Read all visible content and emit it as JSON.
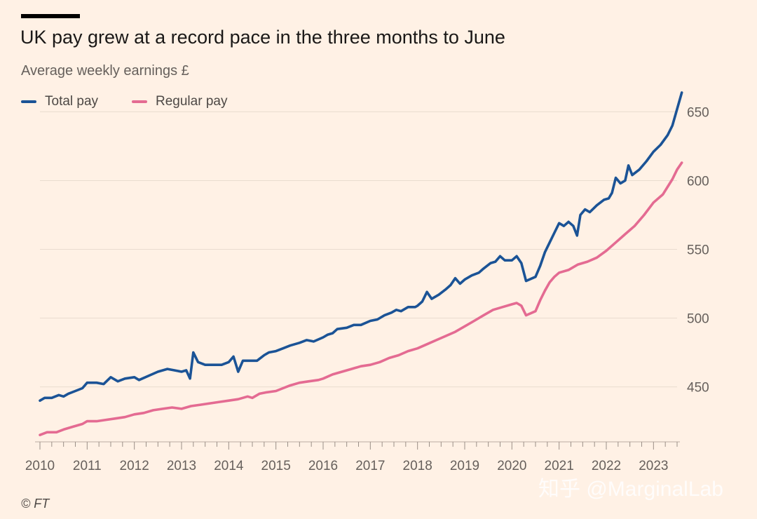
{
  "header": {
    "title": "UK pay grew at a record pace in the three months to June",
    "subtitle": "Average weekly earnings £"
  },
  "footer": {
    "source": "© FT"
  },
  "watermark": "知乎 @MarginalLab",
  "colors": {
    "background": "#fff1e5",
    "total": "#1b5396",
    "regular": "#e46b92",
    "grid": "#e9dccf",
    "axis": "#66605c"
  },
  "chart_data": {
    "type": "line",
    "title": "UK pay grew at a record pace in the three months to June",
    "subtitle": "Average weekly earnings £",
    "xlabel": "",
    "ylabel": "",
    "xlim": [
      2010,
      2023.5
    ],
    "ylim": [
      410,
      665
    ],
    "grid": true,
    "yaxis_position": "right",
    "legend_position": "top-left",
    "x_ticks": [
      2010,
      2011,
      2012,
      2013,
      2014,
      2015,
      2016,
      2017,
      2018,
      2019,
      2020,
      2021,
      2022,
      2023
    ],
    "x_tick_labels": [
      "2010",
      "2011",
      "2012",
      "2013",
      "2014",
      "2015",
      "2016",
      "2017",
      "2018",
      "2019",
      "2020",
      "2021",
      "2022",
      "2023"
    ],
    "y_ticks": [
      450,
      500,
      550,
      600,
      650
    ],
    "y_tick_labels": [
      "450",
      "500",
      "550",
      "600",
      "650"
    ],
    "series": [
      {
        "name": "Total pay",
        "color": "#1b5396",
        "points": [
          [
            2010.0,
            440
          ],
          [
            2010.1,
            442
          ],
          [
            2010.25,
            442
          ],
          [
            2010.4,
            444
          ],
          [
            2010.5,
            443
          ],
          [
            2010.6,
            445
          ],
          [
            2010.75,
            447
          ],
          [
            2010.9,
            449
          ],
          [
            2011.0,
            453
          ],
          [
            2011.2,
            453
          ],
          [
            2011.35,
            452
          ],
          [
            2011.5,
            457
          ],
          [
            2011.65,
            454
          ],
          [
            2011.8,
            456
          ],
          [
            2012.0,
            457
          ],
          [
            2012.1,
            455
          ],
          [
            2012.3,
            458
          ],
          [
            2012.5,
            461
          ],
          [
            2012.7,
            463
          ],
          [
            2012.85,
            462
          ],
          [
            2013.0,
            461
          ],
          [
            2013.1,
            462
          ],
          [
            2013.18,
            456
          ],
          [
            2013.25,
            475
          ],
          [
            2013.35,
            468
          ],
          [
            2013.5,
            466
          ],
          [
            2013.7,
            466
          ],
          [
            2013.85,
            466
          ],
          [
            2014.0,
            468
          ],
          [
            2014.1,
            472
          ],
          [
            2014.2,
            461
          ],
          [
            2014.3,
            469
          ],
          [
            2014.45,
            469
          ],
          [
            2014.6,
            469
          ],
          [
            2014.75,
            473
          ],
          [
            2014.85,
            475
          ],
          [
            2015.0,
            476
          ],
          [
            2015.15,
            478
          ],
          [
            2015.3,
            480
          ],
          [
            2015.5,
            482
          ],
          [
            2015.65,
            484
          ],
          [
            2015.8,
            483
          ],
          [
            2016.0,
            486
          ],
          [
            2016.1,
            488
          ],
          [
            2016.2,
            489
          ],
          [
            2016.3,
            492
          ],
          [
            2016.5,
            493
          ],
          [
            2016.65,
            495
          ],
          [
            2016.8,
            495
          ],
          [
            2017.0,
            498
          ],
          [
            2017.15,
            499
          ],
          [
            2017.3,
            502
          ],
          [
            2017.45,
            504
          ],
          [
            2017.55,
            506
          ],
          [
            2017.65,
            505
          ],
          [
            2017.8,
            508
          ],
          [
            2017.95,
            508
          ],
          [
            2018.0,
            509
          ],
          [
            2018.1,
            512
          ],
          [
            2018.2,
            519
          ],
          [
            2018.3,
            514
          ],
          [
            2018.45,
            517
          ],
          [
            2018.6,
            521
          ],
          [
            2018.7,
            524
          ],
          [
            2018.8,
            529
          ],
          [
            2018.9,
            525
          ],
          [
            2019.0,
            528
          ],
          [
            2019.15,
            531
          ],
          [
            2019.3,
            533
          ],
          [
            2019.4,
            536
          ],
          [
            2019.55,
            540
          ],
          [
            2019.65,
            541
          ],
          [
            2019.75,
            545
          ],
          [
            2019.85,
            542
          ],
          [
            2020.0,
            542
          ],
          [
            2020.1,
            545
          ],
          [
            2020.2,
            540
          ],
          [
            2020.3,
            527
          ],
          [
            2020.5,
            530
          ],
          [
            2020.6,
            538
          ],
          [
            2020.7,
            548
          ],
          [
            2020.8,
            555
          ],
          [
            2020.9,
            562
          ],
          [
            2021.0,
            569
          ],
          [
            2021.1,
            567
          ],
          [
            2021.2,
            570
          ],
          [
            2021.3,
            567
          ],
          [
            2021.38,
            560
          ],
          [
            2021.45,
            575
          ],
          [
            2021.55,
            579
          ],
          [
            2021.65,
            577
          ],
          [
            2021.8,
            582
          ],
          [
            2021.95,
            586
          ],
          [
            2022.05,
            587
          ],
          [
            2022.12,
            591
          ],
          [
            2022.2,
            602
          ],
          [
            2022.3,
            598
          ],
          [
            2022.4,
            600
          ],
          [
            2022.47,
            611
          ],
          [
            2022.55,
            604
          ],
          [
            2022.7,
            608
          ],
          [
            2022.85,
            614
          ],
          [
            2023.0,
            621
          ],
          [
            2023.15,
            626
          ],
          [
            2023.3,
            633
          ],
          [
            2023.4,
            640
          ],
          [
            2023.5,
            652
          ],
          [
            2023.6,
            664
          ]
        ]
      },
      {
        "name": "Regular pay",
        "color": "#e46b92",
        "points": [
          [
            2010.0,
            415
          ],
          [
            2010.15,
            417
          ],
          [
            2010.35,
            417
          ],
          [
            2010.5,
            419
          ],
          [
            2010.7,
            421
          ],
          [
            2010.9,
            423
          ],
          [
            2011.0,
            425
          ],
          [
            2011.2,
            425
          ],
          [
            2011.4,
            426
          ],
          [
            2011.6,
            427
          ],
          [
            2011.8,
            428
          ],
          [
            2012.0,
            430
          ],
          [
            2012.2,
            431
          ],
          [
            2012.4,
            433
          ],
          [
            2012.6,
            434
          ],
          [
            2012.8,
            435
          ],
          [
            2013.0,
            434
          ],
          [
            2013.2,
            436
          ],
          [
            2013.4,
            437
          ],
          [
            2013.6,
            438
          ],
          [
            2013.8,
            439
          ],
          [
            2014.0,
            440
          ],
          [
            2014.2,
            441
          ],
          [
            2014.4,
            443
          ],
          [
            2014.5,
            442
          ],
          [
            2014.65,
            445
          ],
          [
            2014.8,
            446
          ],
          [
            2015.0,
            447
          ],
          [
            2015.15,
            449
          ],
          [
            2015.3,
            451
          ],
          [
            2015.5,
            453
          ],
          [
            2015.7,
            454
          ],
          [
            2015.9,
            455
          ],
          [
            2016.0,
            456
          ],
          [
            2016.2,
            459
          ],
          [
            2016.4,
            461
          ],
          [
            2016.6,
            463
          ],
          [
            2016.8,
            465
          ],
          [
            2017.0,
            466
          ],
          [
            2017.2,
            468
          ],
          [
            2017.4,
            471
          ],
          [
            2017.6,
            473
          ],
          [
            2017.8,
            476
          ],
          [
            2018.0,
            478
          ],
          [
            2018.2,
            481
          ],
          [
            2018.4,
            484
          ],
          [
            2018.6,
            487
          ],
          [
            2018.8,
            490
          ],
          [
            2019.0,
            494
          ],
          [
            2019.2,
            498
          ],
          [
            2019.4,
            502
          ],
          [
            2019.6,
            506
          ],
          [
            2019.8,
            508
          ],
          [
            2020.0,
            510
          ],
          [
            2020.1,
            511
          ],
          [
            2020.2,
            509
          ],
          [
            2020.3,
            502
          ],
          [
            2020.5,
            505
          ],
          [
            2020.6,
            513
          ],
          [
            2020.7,
            520
          ],
          [
            2020.8,
            526
          ],
          [
            2020.9,
            530
          ],
          [
            2021.0,
            533
          ],
          [
            2021.2,
            535
          ],
          [
            2021.4,
            539
          ],
          [
            2021.6,
            541
          ],
          [
            2021.8,
            544
          ],
          [
            2022.0,
            549
          ],
          [
            2022.2,
            555
          ],
          [
            2022.4,
            561
          ],
          [
            2022.6,
            567
          ],
          [
            2022.8,
            575
          ],
          [
            2023.0,
            584
          ],
          [
            2023.2,
            590
          ],
          [
            2023.4,
            601
          ],
          [
            2023.5,
            608
          ],
          [
            2023.6,
            613
          ]
        ]
      }
    ]
  }
}
